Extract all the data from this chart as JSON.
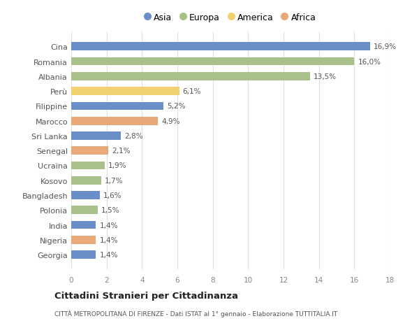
{
  "categories": [
    "Georgia",
    "Nigeria",
    "India",
    "Polonia",
    "Bangladesh",
    "Kosovo",
    "Ucraina",
    "Senegal",
    "Sri Lanka",
    "Marocco",
    "Filippine",
    "Perù",
    "Albania",
    "Romania",
    "Cina"
  ],
  "values": [
    1.4,
    1.4,
    1.4,
    1.5,
    1.6,
    1.7,
    1.9,
    2.1,
    2.8,
    4.9,
    5.2,
    6.1,
    13.5,
    16.0,
    16.9
  ],
  "bar_colors": [
    "#6a8fc8",
    "#e8a878",
    "#6a8fc8",
    "#a8c08a",
    "#6a8fc8",
    "#a8c08a",
    "#a8c08a",
    "#e8a878",
    "#6a8fc8",
    "#e8a878",
    "#6a8fc8",
    "#f0d070",
    "#a8c08a",
    "#a8c08a",
    "#6a8fc8"
  ],
  "legend_labels": [
    "Asia",
    "Europa",
    "America",
    "Africa"
  ],
  "legend_colors": [
    "#6a8fc8",
    "#a8c08a",
    "#f0d070",
    "#e8a878"
  ],
  "xlim": [
    0,
    18
  ],
  "xticks": [
    0,
    2,
    4,
    6,
    8,
    10,
    12,
    14,
    16,
    18
  ],
  "title1": "Cittadini Stranieri per Cittadinanza",
  "title2": "CITTÀ METROPOLITANA DI FIRENZE - Dati ISTAT al 1° gennaio - Elaborazione TUTTITALIA.IT",
  "bg_color": "#ffffff",
  "grid_color": "#e0e0e0",
  "bar_height": 0.55
}
